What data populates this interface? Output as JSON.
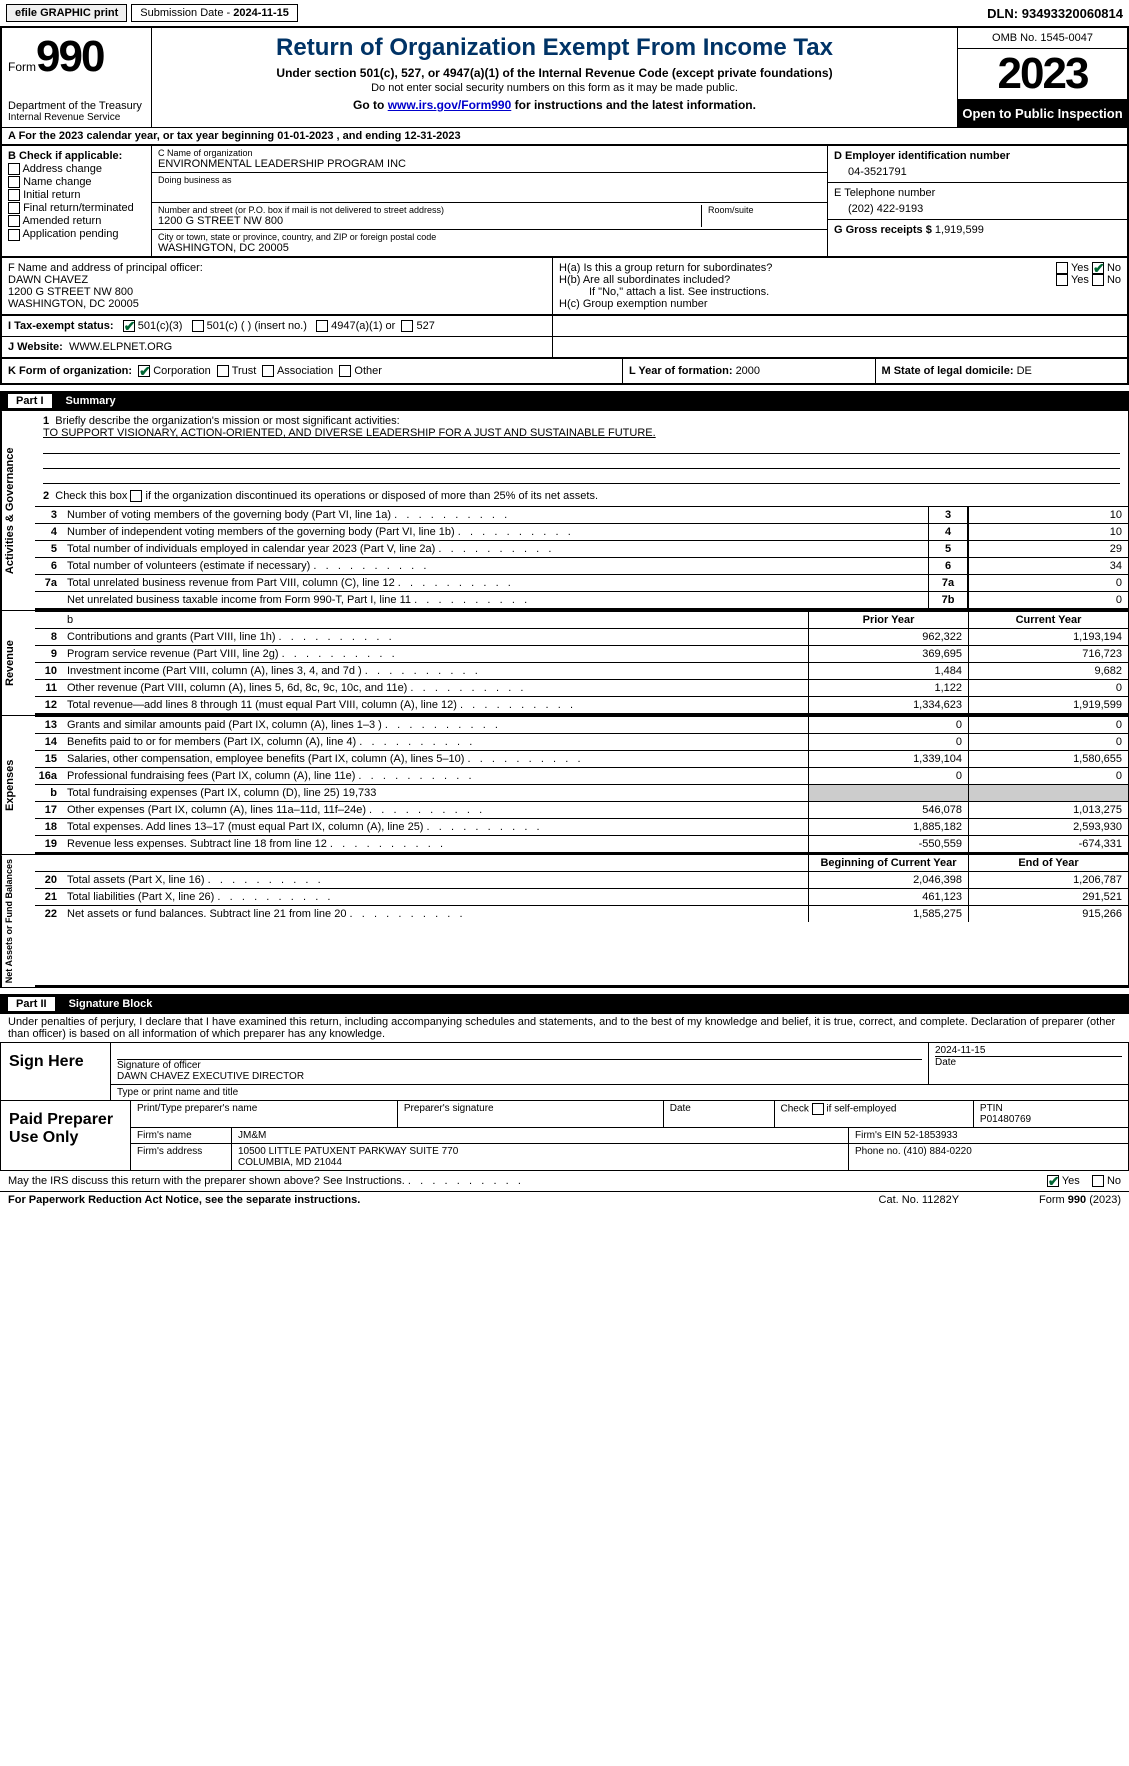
{
  "topbar": {
    "efile": "efile GRAPHIC print",
    "subdate_lbl": "Submission Date - ",
    "subdate": "2024-11-15",
    "dln_lbl": "DLN: ",
    "dln": "93493320060814"
  },
  "hdr": {
    "form_word": "Form",
    "form_num": "990",
    "dept": "Department of the Treasury",
    "irs": "Internal Revenue Service",
    "title": "Return of Organization Exempt From Income Tax",
    "sub1": "Under section 501(c), 527, or 4947(a)(1) of the Internal Revenue Code (except private foundations)",
    "sub2": "Do not enter social security numbers on this form as it may be made public.",
    "sub3_pre": "Go to ",
    "sub3_link": "www.irs.gov/Form990",
    "sub3_post": " for instructions and the latest information.",
    "omb": "OMB No. 1545-0047",
    "year": "2023",
    "open": "Open to Public Inspection"
  },
  "lineA": {
    "pre": "A For the 2023 calendar year, or tax year beginning ",
    "beg": "01-01-2023",
    "mid": " , and ending ",
    "end": "12-31-2023"
  },
  "boxB": {
    "hd": "B Check if applicable:",
    "items": [
      "Address change",
      "Name change",
      "Initial return",
      "Final return/terminated",
      "Amended return",
      "Application pending"
    ]
  },
  "boxC": {
    "name_lbl": "C Name of organization",
    "name": "ENVIRONMENTAL LEADERSHIP PROGRAM INC",
    "dba_lbl": "Doing business as",
    "dba": "",
    "addr_lbl": "Number and street (or P.O. box if mail is not delivered to street address)",
    "room_lbl": "Room/suite",
    "addr": "1200 G STREET NW 800",
    "city_lbl": "City or town, state or province, country, and ZIP or foreign postal code",
    "city": "WASHINGTON, DC  20005"
  },
  "boxD": {
    "lbl": "D Employer identification number",
    "val": "04-3521791"
  },
  "boxE": {
    "lbl": "E Telephone number",
    "val": "(202) 422-9193"
  },
  "boxG": {
    "lbl": "G Gross receipts $ ",
    "val": "1,919,599"
  },
  "boxF": {
    "lbl": "F  Name and address of principal officer:",
    "name": "DAWN CHAVEZ",
    "addr1": "1200 G STREET NW 800",
    "addr2": "WASHINGTON, DC  20005"
  },
  "boxH": {
    "a": "H(a)  Is this a group return for subordinates?",
    "b": "H(b)  Are all subordinates included?",
    "bnote": "If \"No,\" attach a list. See instructions.",
    "c": "H(c)  Group exemption number",
    "yes": "Yes",
    "no": "No"
  },
  "rowI": {
    "lbl": "I  Tax-exempt status:",
    "o1": "501(c)(3)",
    "o2": "501(c) (   ) (insert no.)",
    "o3": "4947(a)(1) or",
    "o4": "527"
  },
  "rowJ": {
    "lbl": "J  Website:",
    "val": "WWW.ELPNET.ORG"
  },
  "rowK": {
    "lbl": "K Form of organization:",
    "o1": "Corporation",
    "o2": "Trust",
    "o3": "Association",
    "o4": "Other"
  },
  "rowL": {
    "lbl": "L Year of formation: ",
    "val": "2000"
  },
  "rowM": {
    "lbl": "M State of legal domicile: ",
    "val": "DE"
  },
  "part1": {
    "num": "Part I",
    "title": "Summary"
  },
  "gov": {
    "vlabel": "Activities & Governance",
    "q1": "Briefly describe the organization's mission or most significant activities:",
    "q1v": "TO SUPPORT VISIONARY, ACTION-ORIENTED, AND DIVERSE LEADERSHIP FOR A JUST AND SUSTAINABLE FUTURE.",
    "q2": "Check this box        if the organization discontinued its operations or disposed of more than 25% of its net assets.",
    "rows": [
      {
        "n": "3",
        "t": "Number of voting members of the governing body (Part VI, line 1a)",
        "k": "3",
        "v": "10"
      },
      {
        "n": "4",
        "t": "Number of independent voting members of the governing body (Part VI, line 1b)",
        "k": "4",
        "v": "10"
      },
      {
        "n": "5",
        "t": "Total number of individuals employed in calendar year 2023 (Part V, line 2a)",
        "k": "5",
        "v": "29"
      },
      {
        "n": "6",
        "t": "Total number of volunteers (estimate if necessary)",
        "k": "6",
        "v": "34"
      },
      {
        "n": "7a",
        "t": "Total unrelated business revenue from Part VIII, column (C), line 12",
        "k": "7a",
        "v": "0"
      },
      {
        "n": "",
        "t": "Net unrelated business taxable income from Form 990-T, Part I, line 11",
        "k": "7b",
        "v": "0"
      }
    ]
  },
  "rev": {
    "vlabel": "Revenue",
    "hp": "Prior Year",
    "hc": "Current Year",
    "rows": [
      {
        "n": "8",
        "t": "Contributions and grants (Part VIII, line 1h)",
        "p": "962,322",
        "c": "1,193,194"
      },
      {
        "n": "9",
        "t": "Program service revenue (Part VIII, line 2g)",
        "p": "369,695",
        "c": "716,723"
      },
      {
        "n": "10",
        "t": "Investment income (Part VIII, column (A), lines 3, 4, and 7d )",
        "p": "1,484",
        "c": "9,682"
      },
      {
        "n": "11",
        "t": "Other revenue (Part VIII, column (A), lines 5, 6d, 8c, 9c, 10c, and 11e)",
        "p": "1,122",
        "c": "0"
      },
      {
        "n": "12",
        "t": "Total revenue—add lines 8 through 11 (must equal Part VIII, column (A), line 12)",
        "p": "1,334,623",
        "c": "1,919,599"
      }
    ]
  },
  "exp": {
    "vlabel": "Expenses",
    "rows": [
      {
        "n": "13",
        "t": "Grants and similar amounts paid (Part IX, column (A), lines 1–3 )",
        "p": "0",
        "c": "0"
      },
      {
        "n": "14",
        "t": "Benefits paid to or for members (Part IX, column (A), line 4)",
        "p": "0",
        "c": "0"
      },
      {
        "n": "15",
        "t": "Salaries, other compensation, employee benefits (Part IX, column (A), lines 5–10)",
        "p": "1,339,104",
        "c": "1,580,655"
      },
      {
        "n": "16a",
        "t": "Professional fundraising fees (Part IX, column (A), line 11e)",
        "p": "0",
        "c": "0"
      },
      {
        "n": "b",
        "t": "Total fundraising expenses (Part IX, column (D), line 25) 19,733",
        "p": "",
        "c": "",
        "grey": true
      },
      {
        "n": "17",
        "t": "Other expenses (Part IX, column (A), lines 11a–11d, 11f–24e)",
        "p": "546,078",
        "c": "1,013,275"
      },
      {
        "n": "18",
        "t": "Total expenses. Add lines 13–17 (must equal Part IX, column (A), line 25)",
        "p": "1,885,182",
        "c": "2,593,930"
      },
      {
        "n": "19",
        "t": "Revenue less expenses. Subtract line 18 from line 12",
        "p": "-550,559",
        "c": "-674,331"
      }
    ]
  },
  "net": {
    "vlabel": "Net Assets or Fund Balances",
    "hp": "Beginning of Current Year",
    "hc": "End of Year",
    "rows": [
      {
        "n": "20",
        "t": "Total assets (Part X, line 16)",
        "p": "2,046,398",
        "c": "1,206,787"
      },
      {
        "n": "21",
        "t": "Total liabilities (Part X, line 26)",
        "p": "461,123",
        "c": "291,521"
      },
      {
        "n": "22",
        "t": "Net assets or fund balances. Subtract line 21 from line 20",
        "p": "1,585,275",
        "c": "915,266"
      }
    ]
  },
  "part2": {
    "num": "Part II",
    "title": "Signature Block"
  },
  "sig": {
    "decl": "Under penalties of perjury, I declare that I have examined this return, including accompanying schedules and statements, and to the best of my knowledge and belief, it is true, correct, and complete. Declaration of preparer (other than officer) is based on all information of which preparer has any knowledge.",
    "sign_here": "Sign Here",
    "sig_lbl": "Signature of officer",
    "date_lbl": "Date",
    "date": "2024-11-15",
    "officer": "DAWN CHAVEZ  EXECUTIVE DIRECTOR",
    "type_lbl": "Type or print name and title"
  },
  "paid": {
    "lab": "Paid Preparer Use Only",
    "h1": "Print/Type preparer's name",
    "h2": "Preparer's signature",
    "h3": "Date",
    "h4_pre": "Check",
    "h4_post": "if self-employed",
    "h5": "PTIN",
    "ptin": "P01480769",
    "firm_name_lbl": "Firm's name",
    "firm_name": "JM&M",
    "firm_ein_lbl": "Firm's EIN",
    "firm_ein": "52-1853933",
    "firm_addr_lbl": "Firm's address",
    "firm_addr1": "10500 LITTLE PATUXENT PARKWAY SUITE 770",
    "firm_addr2": "COLUMBIA, MD  21044",
    "phone_lbl": "Phone no.",
    "phone": "(410) 884-0220"
  },
  "discuss": {
    "q": "May the IRS discuss this return with the preparer shown above? See Instructions.",
    "yes": "Yes",
    "no": "No"
  },
  "footer": {
    "l": "For Paperwork Reduction Act Notice, see the separate instructions.",
    "c": "Cat. No. 11282Y",
    "r": "Form 990 (2023)"
  }
}
